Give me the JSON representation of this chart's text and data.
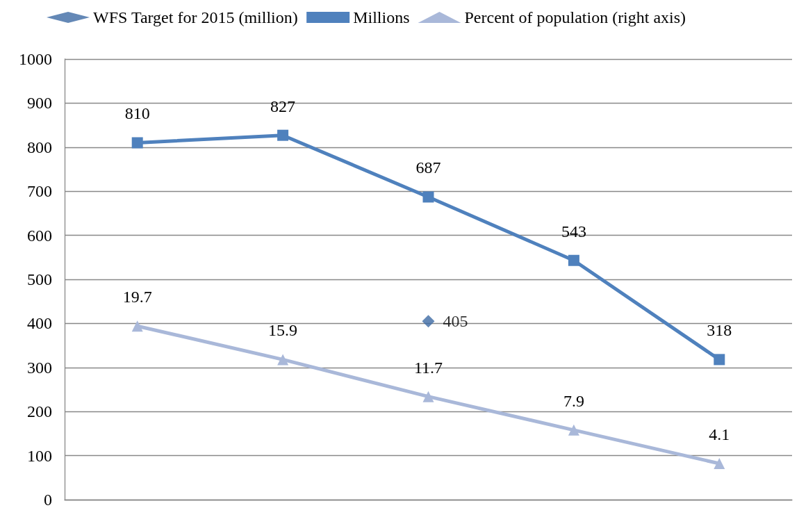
{
  "chart_data": {
    "type": "line",
    "categories": [
      null,
      null,
      null,
      null,
      null
    ],
    "series": [
      {
        "name": "WFS Target for 2015 (million)",
        "type": "scatter",
        "marker": "diamond",
        "color": "#3d6aa4",
        "values": [
          null,
          null,
          405,
          null,
          null
        ]
      },
      {
        "name": "Millions",
        "marker": "square",
        "color": "#4f81bd",
        "values": [
          810,
          827,
          687,
          543,
          318
        ]
      },
      {
        "name": "Percent of population (right axis)",
        "marker": "triangle",
        "color": "#a9b8d9",
        "axis": "y2",
        "values": [
          19.7,
          15.9,
          11.7,
          7.9,
          4.1
        ]
      }
    ],
    "ylim": [
      0,
      1000
    ],
    "yticks": [
      0,
      100,
      200,
      300,
      400,
      500,
      600,
      700,
      800,
      900,
      1000
    ],
    "y2lim": [
      0,
      50
    ],
    "tick_labels": "y",
    "grid": "y",
    "legend": "top",
    "data_labels": true
  }
}
